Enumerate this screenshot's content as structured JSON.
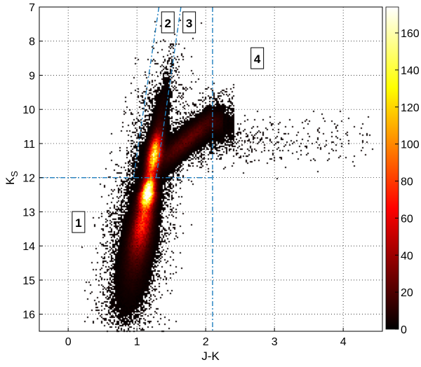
{
  "chart_data": {
    "type": "heatmap",
    "title": "",
    "xlabel": "J-K",
    "ylabel": "K",
    "ylabel_subscript": "S",
    "xlim": [
      -0.42,
      4.57
    ],
    "ylim": [
      16.5,
      7
    ],
    "y_inverted": true,
    "xticks": [
      0,
      1,
      2,
      3,
      4
    ],
    "yticks": [
      7,
      8,
      9,
      10,
      11,
      12,
      13,
      14,
      15,
      16
    ],
    "grid": true,
    "grid_style": "dotted",
    "colormap": "hot",
    "colorbar": {
      "range": [
        0,
        174
      ],
      "ticks": [
        0,
        20,
        40,
        60,
        80,
        100,
        120,
        140,
        160
      ],
      "placement": "right"
    },
    "line_color": "#1f7fbf",
    "boundary_lines": [
      {
        "style": "dash-dot",
        "points": [
          [
            -0.42,
            12
          ],
          [
            2.1,
            12
          ]
        ]
      },
      {
        "style": "dash-dot",
        "points": [
          [
            2.1,
            7
          ],
          [
            2.1,
            16.5
          ]
        ]
      },
      {
        "style": "dash-dot",
        "points": [
          [
            1.32,
            7
          ],
          [
            0.95,
            12
          ]
        ]
      },
      {
        "style": "dash-dot",
        "points": [
          [
            1.64,
            7
          ],
          [
            1.28,
            12
          ]
        ]
      }
    ],
    "region_labels": [
      {
        "text": "1",
        "x": 0.15,
        "y": 13.3
      },
      {
        "text": "2",
        "x": 1.45,
        "y": 7.45
      },
      {
        "text": "3",
        "x": 1.76,
        "y": 7.45
      },
      {
        "text": "4",
        "x": 2.75,
        "y": 8.5
      }
    ],
    "density_peaks": [
      {
        "x": 1.15,
        "y": 12.4,
        "value": 170
      },
      {
        "x": 1.25,
        "y": 11.3,
        "value": 130
      }
    ]
  }
}
